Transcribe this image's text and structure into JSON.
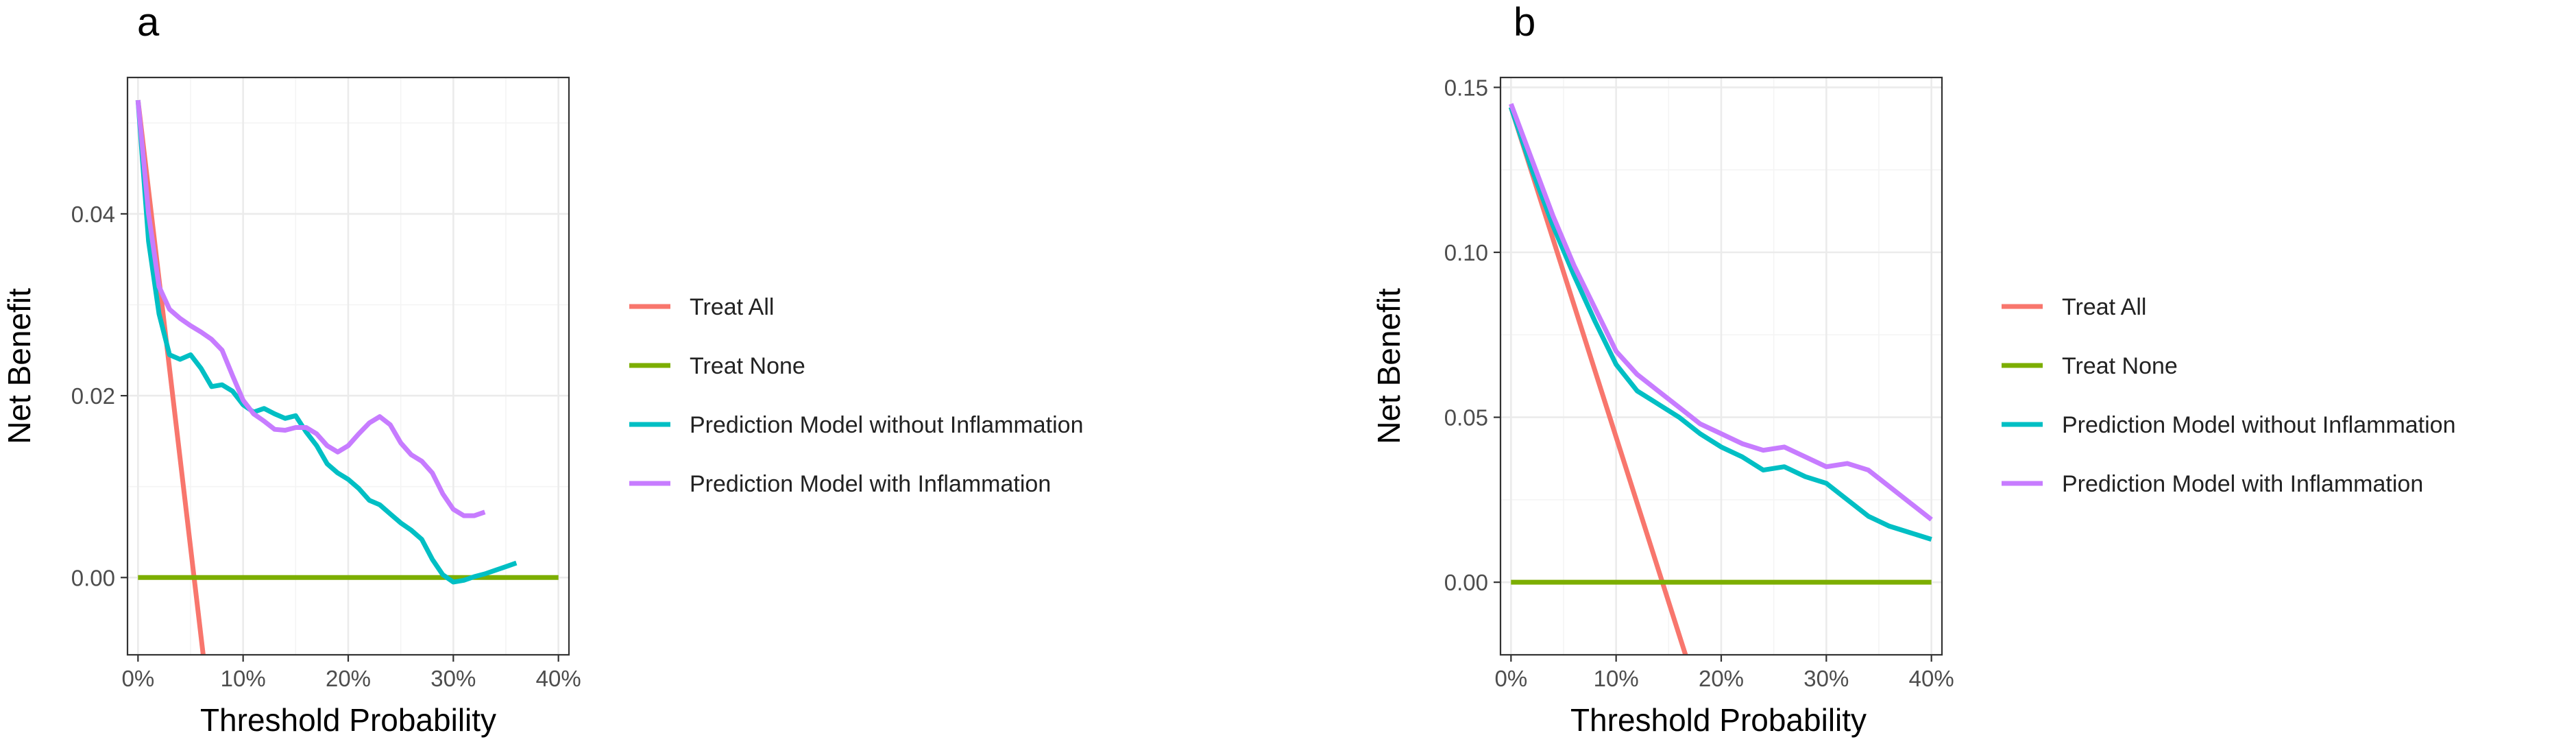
{
  "chart_data": [
    {
      "type": "line",
      "panel_label": "a",
      "title": "",
      "xlabel": "Threshold Probability",
      "ylabel": "Net Benefit",
      "xlim": [
        -0.01,
        0.41
      ],
      "ylim": [
        -0.0085,
        0.055
      ],
      "xticks": [
        0,
        0.1,
        0.2,
        0.3,
        0.4
      ],
      "xtick_labels": [
        "0%",
        "10%",
        "20%",
        "30%",
        "40%"
      ],
      "yticks": [
        0,
        0.02,
        0.04
      ],
      "ytick_labels": [
        "0.00",
        "0.02",
        "0.04"
      ],
      "grid": true,
      "legend_position": "right",
      "series": [
        {
          "name": "Treat All",
          "color": "#F8766D",
          "x": [
            0,
            0.062
          ],
          "y": [
            0.0525,
            -0.0085
          ]
        },
        {
          "name": "Treat None",
          "color": "#7CAE00",
          "x": [
            0,
            0.4
          ],
          "y": [
            0,
            0
          ]
        },
        {
          "name": "Prediction Model without Inflammation",
          "color": "#00BFC4",
          "x": [
            0,
            0.01,
            0.02,
            0.03,
            0.04,
            0.05,
            0.06,
            0.07,
            0.08,
            0.09,
            0.1,
            0.11,
            0.12,
            0.13,
            0.14,
            0.15,
            0.16,
            0.17,
            0.18,
            0.19,
            0.2,
            0.21,
            0.22,
            0.23,
            0.24,
            0.25,
            0.26,
            0.27,
            0.28,
            0.29,
            0.3,
            0.31,
            0.32,
            0.33,
            0.34,
            0.35,
            0.36
          ],
          "y": [
            0.0525,
            0.037,
            0.029,
            0.0245,
            0.024,
            0.0245,
            0.023,
            0.021,
            0.0212,
            0.0205,
            0.019,
            0.0182,
            0.0186,
            0.018,
            0.0175,
            0.0178,
            0.016,
            0.0145,
            0.0125,
            0.0115,
            0.0108,
            0.0098,
            0.0085,
            0.008,
            0.007,
            0.006,
            0.0052,
            0.0042,
            0.002,
            0.0003,
            -0.0005,
            -0.0003,
            0.0001,
            0.0004,
            0.0008,
            0.0012,
            0.0016
          ]
        },
        {
          "name": "Prediction Model with Inflammation",
          "color": "#C77CFF",
          "x": [
            0,
            0.01,
            0.02,
            0.03,
            0.04,
            0.05,
            0.06,
            0.07,
            0.08,
            0.09,
            0.1,
            0.11,
            0.12,
            0.13,
            0.14,
            0.15,
            0.16,
            0.17,
            0.18,
            0.19,
            0.2,
            0.21,
            0.22,
            0.23,
            0.24,
            0.25,
            0.26,
            0.27,
            0.28,
            0.29,
            0.3,
            0.31,
            0.32,
            0.33
          ],
          "y": [
            0.0525,
            0.04,
            0.032,
            0.0295,
            0.0285,
            0.0277,
            0.027,
            0.0262,
            0.025,
            0.0222,
            0.0195,
            0.018,
            0.0172,
            0.0163,
            0.0162,
            0.0165,
            0.0165,
            0.0158,
            0.0145,
            0.0138,
            0.0145,
            0.0158,
            0.017,
            0.0177,
            0.0168,
            0.0148,
            0.0135,
            0.0128,
            0.0115,
            0.0092,
            0.0075,
            0.0068,
            0.0068,
            0.0072
          ]
        }
      ]
    },
    {
      "type": "line",
      "panel_label": "b",
      "title": "",
      "xlabel": "Threshold Probability",
      "ylabel": "Net Benefit",
      "xlim": [
        -0.01,
        0.41
      ],
      "ylim": [
        -0.022,
        0.153
      ],
      "xticks": [
        0,
        0.1,
        0.2,
        0.3,
        0.4
      ],
      "xtick_labels": [
        "0%",
        "10%",
        "20%",
        "30%",
        "40%"
      ],
      "yticks": [
        0,
        0.05,
        0.1,
        0.15
      ],
      "ytick_labels": [
        "0.00",
        "0.05",
        "0.10",
        "0.15"
      ],
      "grid": true,
      "legend_position": "right",
      "series": [
        {
          "name": "Treat All",
          "color": "#F8766D",
          "x": [
            0,
            0.166
          ],
          "y": [
            0.144,
            -0.022
          ]
        },
        {
          "name": "Treat None",
          "color": "#7CAE00",
          "x": [
            0,
            0.4
          ],
          "y": [
            0,
            0
          ]
        },
        {
          "name": "Prediction Model without Inflammation",
          "color": "#00BFC4",
          "x": [
            0,
            0.02,
            0.04,
            0.06,
            0.08,
            0.1,
            0.12,
            0.14,
            0.16,
            0.18,
            0.2,
            0.22,
            0.24,
            0.26,
            0.28,
            0.3,
            0.32,
            0.34,
            0.36,
            0.38,
            0.4
          ],
          "y": [
            0.144,
            0.125,
            0.108,
            0.093,
            0.079,
            0.066,
            0.058,
            0.054,
            0.05,
            0.045,
            0.041,
            0.038,
            0.034,
            0.035,
            0.032,
            0.03,
            0.025,
            0.02,
            0.017,
            0.015,
            0.013
          ]
        },
        {
          "name": "Prediction Model with Inflammation",
          "color": "#C77CFF",
          "x": [
            0,
            0.02,
            0.04,
            0.06,
            0.08,
            0.1,
            0.12,
            0.14,
            0.16,
            0.18,
            0.2,
            0.22,
            0.24,
            0.26,
            0.28,
            0.3,
            0.32,
            0.34,
            0.36,
            0.38,
            0.4
          ],
          "y": [
            0.145,
            0.128,
            0.111,
            0.096,
            0.083,
            0.07,
            0.063,
            0.058,
            0.053,
            0.048,
            0.045,
            0.042,
            0.04,
            0.041,
            0.038,
            0.035,
            0.036,
            0.034,
            0.029,
            0.024,
            0.019
          ]
        }
      ]
    }
  ]
}
